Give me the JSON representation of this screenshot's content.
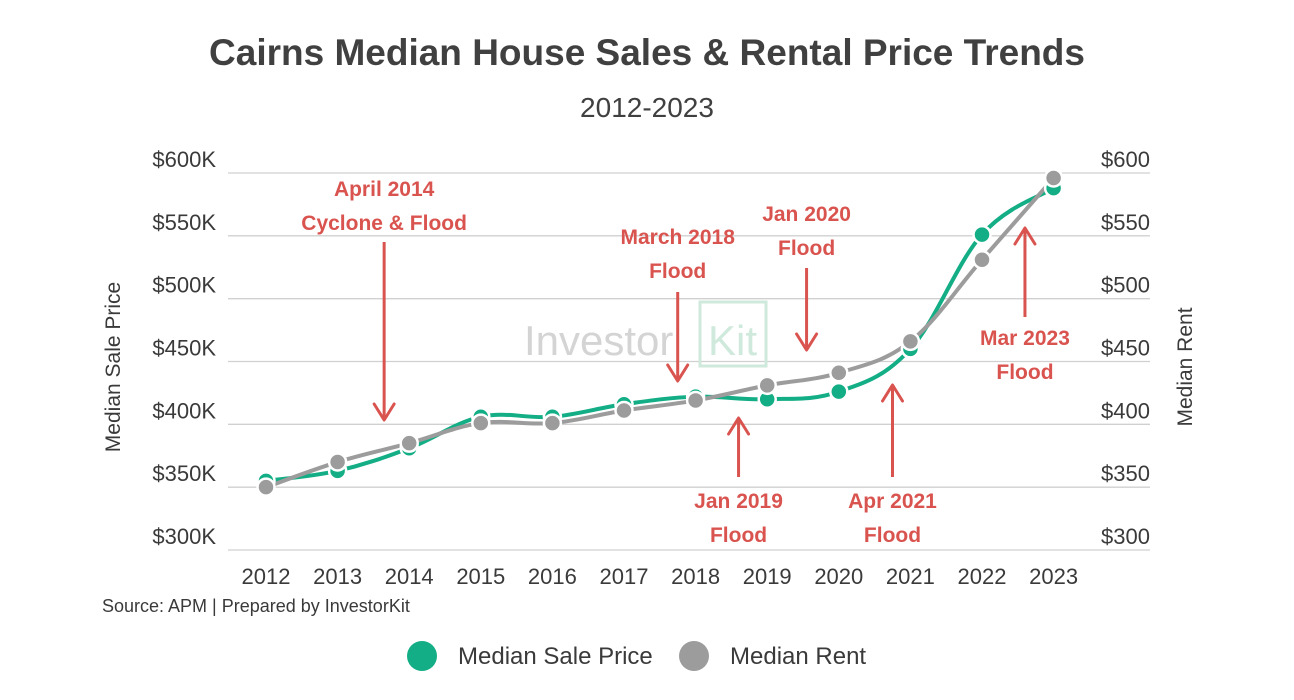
{
  "colors": {
    "sale": "#13ae85",
    "rent": "#9c9c9c",
    "annotation": "#d9534f",
    "grid": "#d0d0d0",
    "text": "#3a3a3a"
  },
  "source": "Source: APM | Prepared by InvestorKit",
  "watermark": {
    "part1": "Investor",
    "part2": "Kit"
  },
  "chart_data": {
    "type": "line",
    "title": "Cairns Median House Sales & Rental Price Trends",
    "subtitle": "2012-2023",
    "ylabel": "Median Sale Price",
    "y2label": "Median Rent",
    "categories": [
      "2012",
      "2013",
      "2014",
      "2015",
      "2016",
      "2017",
      "2018",
      "2019",
      "2020",
      "2021",
      "2022",
      "2023"
    ],
    "ylim": [
      300,
      600
    ],
    "y2lim": [
      300,
      600
    ],
    "yticks": [
      "$300K",
      "$350K",
      "$400K",
      "$450K",
      "$500K",
      "$550K",
      "$600K"
    ],
    "y2ticks": [
      "$300",
      "$350",
      "$400",
      "$450",
      "$500",
      "$550",
      "$600"
    ],
    "series": [
      {
        "name": "Median Sale Price",
        "axis": "left",
        "color": "#13ae85",
        "values": [
          355,
          363,
          381,
          406,
          406,
          416,
          422,
          420,
          426,
          460,
          551,
          588
        ]
      },
      {
        "name": "Median Rent",
        "axis": "right",
        "color": "#9c9c9c",
        "values": [
          350,
          370,
          385,
          401,
          401,
          411,
          419,
          431,
          441,
          466,
          531,
          596
        ]
      }
    ],
    "annotations": [
      {
        "lines": [
          "April 2014",
          "Cyclone & Flood"
        ],
        "year": 2013.65,
        "direction": "down",
        "textY": 196,
        "arrowFrom": 242,
        "arrowTo": 420
      },
      {
        "lines": [
          "March 2018",
          "Flood"
        ],
        "year": 2017.75,
        "direction": "down",
        "textY": 244,
        "arrowFrom": 292,
        "arrowTo": 381
      },
      {
        "lines": [
          "Jan 2020",
          "Flood"
        ],
        "year": 2019.55,
        "direction": "down",
        "textY": 221,
        "arrowFrom": 268,
        "arrowTo": 350
      },
      {
        "lines": [
          "Jan 2019",
          "Flood"
        ],
        "year": 2018.6,
        "direction": "up",
        "textY": 508,
        "arrowFrom": 477,
        "arrowTo": 418
      },
      {
        "lines": [
          "Apr 2021",
          "Flood"
        ],
        "year": 2020.75,
        "direction": "up",
        "textY": 508,
        "arrowFrom": 477,
        "arrowTo": 385
      },
      {
        "lines": [
          "Mar 2023",
          "Flood"
        ],
        "year": 2022.6,
        "direction": "up",
        "textY": 345,
        "arrowFrom": 317,
        "arrowTo": 228
      }
    ]
  }
}
